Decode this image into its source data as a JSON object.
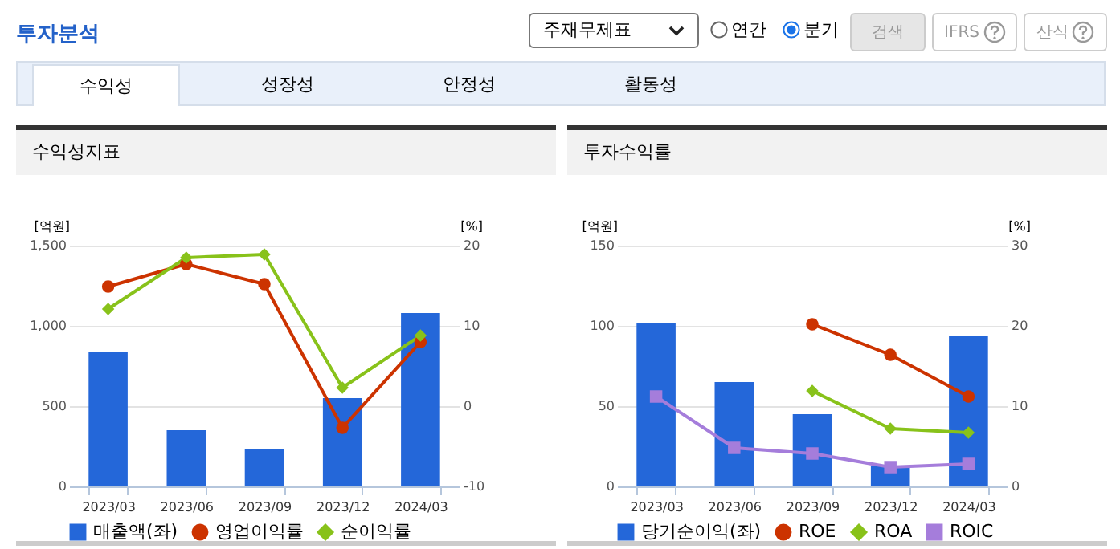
{
  "chart_data": [
    {
      "type": "other",
      "title": "투자분석",
      "annotations": [
        "주재무제표",
        "연간",
        "분기",
        "검색",
        "IFRS",
        "산식",
        "수익성",
        "성장성",
        "안정성",
        "활동성"
      ]
    },
    {
      "type": "bar",
      "title": "수익성지표",
      "ylabel": "[억원]",
      "y2label": "[%]",
      "categories": [
        "2023/03",
        "2023/06",
        "2023/09",
        "2023/12",
        "2024/03"
      ],
      "series": [
        {
          "name": "매출액(좌)",
          "type": "bar",
          "color": "#2467d9",
          "values": [
            840,
            350,
            230,
            550,
            1080
          ]
        },
        {
          "name": "영업이익률",
          "type": "line",
          "axis": "y2",
          "color": "#cc3300",
          "marker": "circle",
          "values": [
            14.9,
            17.7,
            15.2,
            -2.7,
            8.0
          ]
        },
        {
          "name": "순이익률",
          "type": "line",
          "axis": "y2",
          "color": "#88c21a",
          "marker": "diamond",
          "values": [
            12.1,
            18.5,
            18.9,
            2.3,
            8.8
          ]
        }
      ],
      "ylim": [
        0,
        1500
      ],
      "yticks": [
        0,
        500,
        {
          "value": 1000,
          "label": "1,000"
        },
        {
          "value": 1500,
          "label": "1,500"
        }
      ],
      "y2lim": [
        -10,
        20
      ],
      "y2ticks": [
        -10,
        0,
        10,
        20
      ],
      "grid": "y",
      "legend": "bottom"
    },
    {
      "type": "bar",
      "title": "투자수익률",
      "ylabel": "[억원]",
      "y2label": "[%]",
      "categories": [
        "2023/03",
        "2023/06",
        "2023/09",
        "2023/12",
        "2024/03"
      ],
      "series": [
        {
          "name": "당기순이익(좌)",
          "type": "bar",
          "color": "#2467d9",
          "values": [
            102,
            65,
            45,
            13,
            94
          ]
        },
        {
          "name": "ROE",
          "type": "line",
          "axis": "y2",
          "color": "#cc3300",
          "marker": "circle",
          "values": [
            null,
            null,
            20.2,
            16.4,
            11.2
          ]
        },
        {
          "name": "ROA",
          "type": "line",
          "axis": "y2",
          "color": "#88c21a",
          "marker": "diamond",
          "values": [
            null,
            null,
            11.9,
            7.2,
            6.7
          ]
        },
        {
          "name": "ROIC",
          "type": "line",
          "axis": "y2",
          "color": "#a57ddb",
          "marker": "square",
          "values": [
            11.2,
            4.8,
            4.1,
            2.4,
            2.8
          ]
        }
      ],
      "ylim": [
        0,
        150
      ],
      "yticks": [
        0,
        50,
        100,
        150
      ],
      "y2lim": [
        0,
        30
      ],
      "y2ticks": [
        0,
        10,
        20,
        30
      ],
      "grid": "y",
      "legend": "bottom"
    }
  ]
}
